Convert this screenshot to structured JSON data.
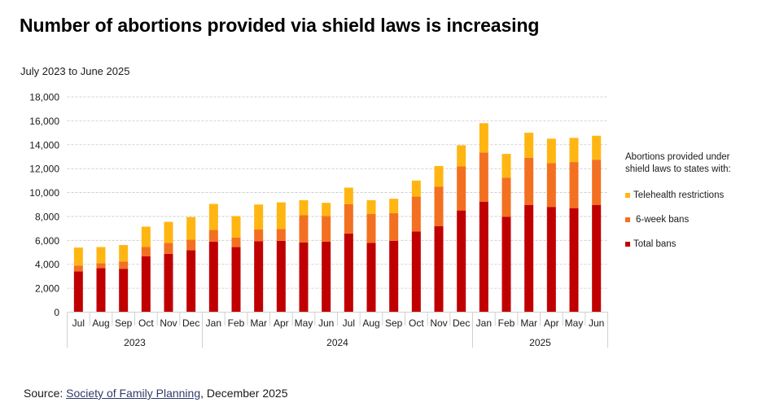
{
  "title": "Number of abortions provided via shield laws is increasing",
  "subtitle": "July 2023 to June 2025",
  "source": {
    "prefix": "Source: ",
    "link_text": "Society of Family Planning",
    "suffix": ", December 2025"
  },
  "legend": {
    "title_line1": "Abortions provided under",
    "title_line2": "shield laws to states with:"
  },
  "chart_data": {
    "type": "bar",
    "stacked": true,
    "title": "Number of abortions provided via shield laws is increasing",
    "subtitle": "July 2023 to June 2025",
    "xlabel": "",
    "ylabel": "",
    "ylim": [
      0,
      18000
    ],
    "yticks": [
      0,
      2000,
      4000,
      6000,
      8000,
      10000,
      12000,
      14000,
      16000,
      18000
    ],
    "ytick_labels": [
      "0",
      "2,000",
      "4,000",
      "6,000",
      "8,000",
      "10,000",
      "12,000",
      "14,000",
      "16,000",
      "18,000"
    ],
    "grid": true,
    "legend_position": "right",
    "categories": [
      "Jul",
      "Aug",
      "Sep",
      "Oct",
      "Nov",
      "Dec",
      "Jan",
      "Feb",
      "Mar",
      "Apr",
      "May",
      "Jun",
      "Jul",
      "Aug",
      "Sep",
      "Oct",
      "Nov",
      "Dec",
      "Jan",
      "Feb",
      "Mar",
      "Apr",
      "May",
      "Jun"
    ],
    "year_groups": [
      {
        "label": "2023",
        "count": 6
      },
      {
        "label": "2024",
        "count": 12
      },
      {
        "label": "2025",
        "count": 6
      }
    ],
    "series": [
      {
        "name": "Total bans",
        "color": "#C00000",
        "values": [
          3400,
          3680,
          3630,
          4680,
          4880,
          5180,
          5900,
          5440,
          5940,
          5960,
          5820,
          5890,
          6570,
          5800,
          5960,
          6750,
          7180,
          8500,
          9240,
          7980,
          8970,
          8800,
          8700,
          8970
        ]
      },
      {
        "name": "6-week bans",
        "color": "#F37021",
        "values": [
          500,
          400,
          610,
          770,
          900,
          890,
          970,
          790,
          970,
          1000,
          2280,
          2140,
          2450,
          2400,
          2310,
          2910,
          3300,
          3680,
          4110,
          3270,
          3930,
          3660,
          3850,
          3780
        ]
      },
      {
        "name": "Telehealth restrictions",
        "color": "#FFB612",
        "values": [
          1500,
          1360,
          1370,
          1700,
          1770,
          1880,
          2180,
          1800,
          2090,
          2220,
          1260,
          1110,
          1390,
          1160,
          1210,
          1340,
          1740,
          1770,
          2450,
          1980,
          2100,
          2040,
          2020,
          2000
        ]
      }
    ],
    "legend_order": [
      "Telehealth restrictions",
      "6-week bans",
      "Total bans"
    ]
  }
}
